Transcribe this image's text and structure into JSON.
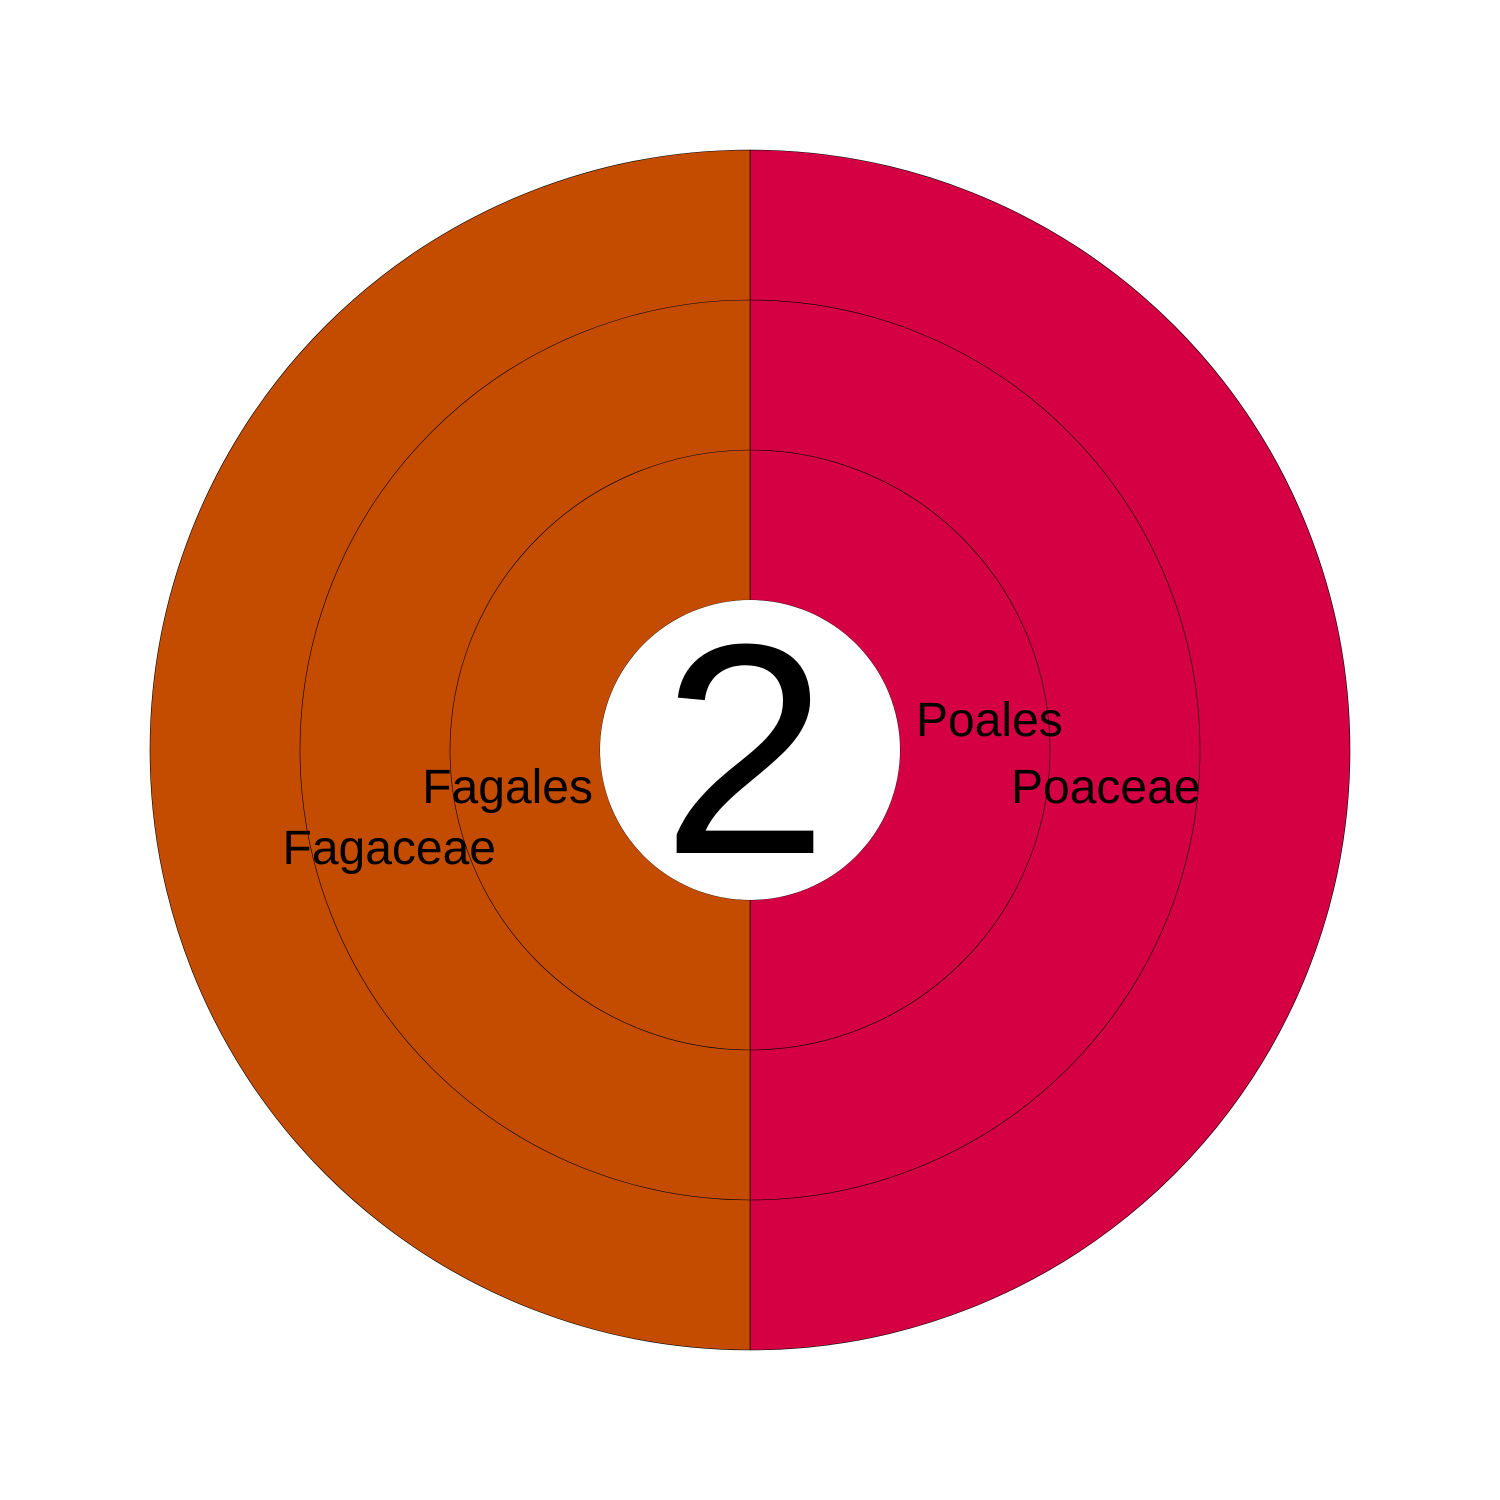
{
  "chart_data": {
    "type": "sunburst",
    "center_label": "2",
    "levels": [
      "order",
      "family"
    ],
    "slices": [
      {
        "order": "Fagales",
        "family": "Fagaceae",
        "value": 1,
        "color": "#d40043"
      },
      {
        "order": "Poales",
        "family": "Poaceae",
        "value": 1,
        "color": "#c44c00"
      }
    ]
  }
}
